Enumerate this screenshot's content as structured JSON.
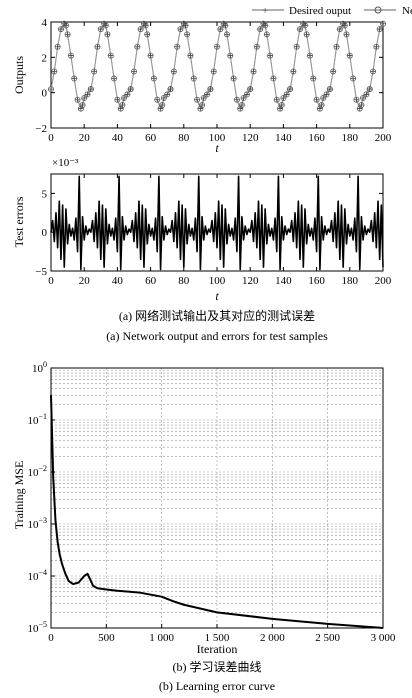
{
  "chart_data": [
    {
      "id": "outputs",
      "type": "line",
      "ylabel": "Outputs",
      "xlabel": "t",
      "xlim": [
        0,
        200
      ],
      "ylim": [
        -2,
        4
      ],
      "xticks": [
        0,
        20,
        40,
        60,
        80,
        100,
        120,
        140,
        160,
        180,
        200
      ],
      "yticks": [
        -2,
        0,
        2,
        4
      ],
      "legend_position": "top",
      "period": 24,
      "x": [
        0,
        2,
        4,
        6,
        8,
        9,
        10,
        12,
        14,
        16,
        18,
        19,
        20,
        22,
        24
      ],
      "series": [
        {
          "name": "Desired ouput",
          "marker": "+",
          "values": [
            0.2,
            1.2,
            2.6,
            3.6,
            3.9,
            3.8,
            3.3,
            2.1,
            0.8,
            -0.4,
            -0.9,
            -0.7,
            -0.3,
            -0.1,
            0.2
          ]
        },
        {
          "name": "Network ouput",
          "marker": "o",
          "values": [
            0.2,
            1.2,
            2.6,
            3.6,
            3.9,
            3.8,
            3.3,
            2.1,
            0.8,
            -0.4,
            -0.9,
            -0.7,
            -0.3,
            -0.1,
            0.2
          ]
        }
      ]
    },
    {
      "id": "errors",
      "type": "line",
      "ylabel": "Test errors",
      "xlabel": "t",
      "exponent": "×10⁻³",
      "xlim": [
        0,
        200
      ],
      "ylim": [
        -5,
        7.5
      ],
      "xticks": [
        0,
        20,
        40,
        60,
        80,
        100,
        120,
        140,
        160,
        180,
        200
      ],
      "yticks": [
        -5,
        0,
        5
      ],
      "period": 24,
      "x": [
        0,
        1,
        2,
        3,
        4,
        5,
        6,
        7,
        8,
        9,
        10,
        11,
        12,
        13,
        14,
        15,
        16,
        17,
        18,
        19,
        20,
        21,
        22,
        23
      ],
      "series": [
        {
          "name": "Test error",
          "values": [
            0.0,
            1.5,
            -1.2,
            2.5,
            -2.0,
            4.0,
            -3.5,
            3.5,
            -4.5,
            3.0,
            -1.5,
            1.0,
            -0.5,
            0.5,
            -1.0,
            1.8,
            -2.5,
            7.2,
            -4.8,
            2.0,
            -1.0,
            0.8,
            -0.3,
            0.4
          ]
        }
      ]
    },
    {
      "id": "mse",
      "type": "line",
      "ylabel": "Training MSE",
      "xlabel": "Iteration",
      "xlim": [
        0,
        3000
      ],
      "yscale": "log",
      "ylim": [
        1e-05,
        1
      ],
      "xticks": [
        0,
        500,
        1000,
        1500,
        2000,
        2500,
        3000
      ],
      "xtick_labels": [
        "0",
        "500",
        "1 000",
        "1 500",
        "2 000",
        "2 500",
        "3 000"
      ],
      "yticks": [
        1e-05,
        0.0001,
        0.001,
        0.01,
        0.1,
        1
      ],
      "ytick_labels": [
        [
          "10",
          "−5"
        ],
        [
          "10",
          "−4"
        ],
        [
          "10",
          "−3"
        ],
        [
          "10",
          "−2"
        ],
        [
          "10",
          "−1"
        ],
        [
          "10",
          "0"
        ]
      ],
      "grid": true,
      "x": [
        0,
        10,
        20,
        40,
        60,
        80,
        100,
        130,
        160,
        200,
        250,
        300,
        330,
        350,
        380,
        420,
        500,
        600,
        800,
        1000,
        1100,
        1200,
        1500,
        2000,
        2500,
        3000
      ],
      "series": [
        {
          "name": "Training MSE",
          "values": [
            0.3,
            0.05,
            0.008,
            0.0012,
            0.00045,
            0.00025,
            0.00017,
            0.00011,
            8e-05,
            7e-05,
            7.5e-05,
            0.0001,
            0.00011,
            9e-05,
            6.5e-05,
            5.8e-05,
            5.5e-05,
            5.2e-05,
            4.8e-05,
            4e-05,
            3.3e-05,
            2.8e-05,
            2e-05,
            1.5e-05,
            1.2e-05,
            1e-05
          ]
        }
      ]
    }
  ],
  "captions": {
    "a_cn": "(a) 网络测试输出及其对应的测试误差",
    "a_en": "(a) Network output and errors for test samples",
    "b_cn": "(b) 学习误差曲线",
    "b_en": "(b) Learning error curve"
  }
}
